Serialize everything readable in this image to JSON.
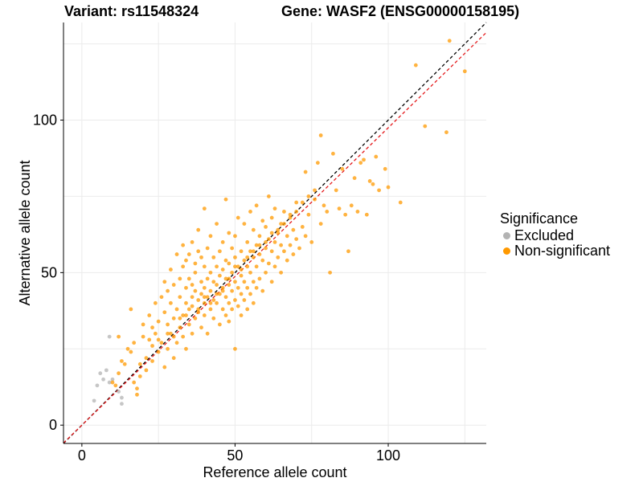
{
  "header": {
    "variant_title": "Variant: rs11548324",
    "gene_title": "Gene: WASF2 (ENSG00000158195)"
  },
  "legend": {
    "title": "Significance",
    "items": [
      {
        "label": "Excluded",
        "color": "#b3b3b3"
      },
      {
        "label": "Non-significant",
        "color": "#ff9900"
      }
    ]
  },
  "chart_data": {
    "type": "scatter",
    "xlabel": "Reference allele count",
    "ylabel": "Alternative allele count",
    "xlim": [
      -6,
      132
    ],
    "ylim": [
      -6,
      132
    ],
    "x_ticks": [
      0,
      50,
      100
    ],
    "y_ticks": [
      0,
      50,
      100
    ],
    "grid": true,
    "legend_position": "right",
    "reference_lines": [
      {
        "name": "identity",
        "color": "#000000",
        "style": "dashed",
        "slope": 1.0,
        "intercept": 0
      },
      {
        "name": "fit",
        "color": "#e41a1c",
        "style": "dashed",
        "slope": 0.975,
        "intercept": 0
      }
    ],
    "series": [
      {
        "name": "Excluded",
        "color": "#b3b3b3",
        "points": [
          [
            4,
            8
          ],
          [
            5,
            13
          ],
          [
            6,
            17
          ],
          [
            7,
            15
          ],
          [
            8,
            18
          ],
          [
            9,
            14
          ],
          [
            9,
            29
          ],
          [
            10,
            15
          ],
          [
            13,
            9
          ],
          [
            13,
            7
          ],
          [
            12,
            11
          ]
        ]
      },
      {
        "name": "Non-significant",
        "color": "#ff9900",
        "points": [
          [
            10,
            14
          ],
          [
            11,
            13
          ],
          [
            12,
            17
          ],
          [
            13,
            21
          ],
          [
            14,
            20
          ],
          [
            15,
            25
          ],
          [
            12,
            29
          ],
          [
            16,
            24
          ],
          [
            17,
            27
          ],
          [
            16,
            38
          ],
          [
            18,
            10
          ],
          [
            18,
            12
          ],
          [
            19,
            20
          ],
          [
            20,
            29
          ],
          [
            20,
            33
          ],
          [
            21,
            22
          ],
          [
            22,
            36
          ],
          [
            22,
            28
          ],
          [
            23,
            21
          ],
          [
            23,
            32
          ],
          [
            24,
            30
          ],
          [
            24,
            40
          ],
          [
            25,
            24
          ],
          [
            25,
            34
          ],
          [
            26,
            27
          ],
          [
            26,
            42
          ],
          [
            27,
            19
          ],
          [
            27,
            37
          ],
          [
            27,
            47
          ],
          [
            28,
            25
          ],
          [
            28,
            33
          ],
          [
            28,
            44
          ],
          [
            29,
            30
          ],
          [
            29,
            40
          ],
          [
            29,
            51
          ],
          [
            30,
            22
          ],
          [
            30,
            35
          ],
          [
            30,
            46
          ],
          [
            31,
            27
          ],
          [
            31,
            38
          ],
          [
            31,
            56
          ],
          [
            32,
            32
          ],
          [
            32,
            42
          ],
          [
            32,
            48
          ],
          [
            33,
            29
          ],
          [
            33,
            36
          ],
          [
            33,
            52
          ],
          [
            33,
            59
          ],
          [
            34,
            25
          ],
          [
            34,
            40
          ],
          [
            34,
            45
          ],
          [
            34,
            54
          ],
          [
            35,
            33
          ],
          [
            35,
            38
          ],
          [
            35,
            48
          ],
          [
            35,
            56
          ],
          [
            36,
            30
          ],
          [
            36,
            42
          ],
          [
            36,
            46
          ],
          [
            36,
            60
          ],
          [
            37,
            35
          ],
          [
            37,
            44
          ],
          [
            37,
            50
          ],
          [
            37,
            53
          ],
          [
            38,
            38
          ],
          [
            38,
            41
          ],
          [
            38,
            57
          ],
          [
            38,
            64
          ],
          [
            39,
            32
          ],
          [
            39,
            43
          ],
          [
            39,
            47
          ],
          [
            39,
            55
          ],
          [
            40,
            36
          ],
          [
            40,
            40
          ],
          [
            40,
            45
          ],
          [
            40,
            52
          ],
          [
            40,
            71
          ],
          [
            41,
            30
          ],
          [
            41,
            42
          ],
          [
            41,
            48
          ],
          [
            41,
            58
          ],
          [
            42,
            38
          ],
          [
            42,
            44
          ],
          [
            42,
            50
          ],
          [
            42,
            62
          ],
          [
            43,
            35
          ],
          [
            43,
            41
          ],
          [
            43,
            47
          ],
          [
            43,
            55
          ],
          [
            44,
            40
          ],
          [
            44,
            46
          ],
          [
            44,
            52
          ],
          [
            44,
            66
          ],
          [
            45,
            33
          ],
          [
            45,
            43
          ],
          [
            45,
            49
          ],
          [
            45,
            57
          ],
          [
            46,
            38
          ],
          [
            46,
            44
          ],
          [
            46,
            51
          ],
          [
            46,
            60
          ],
          [
            47,
            36
          ],
          [
            47,
            42
          ],
          [
            47,
            48
          ],
          [
            47,
            54
          ],
          [
            47,
            74
          ],
          [
            48,
            34
          ],
          [
            48,
            40
          ],
          [
            48,
            46
          ],
          [
            48,
            53
          ],
          [
            48,
            63
          ],
          [
            49,
            38
          ],
          [
            49,
            44
          ],
          [
            49,
            50
          ],
          [
            49,
            58
          ],
          [
            50,
            25
          ],
          [
            50,
            41
          ],
          [
            50,
            47
          ],
          [
            50,
            55
          ],
          [
            50,
            62
          ],
          [
            51,
            39
          ],
          [
            51,
            45
          ],
          [
            51,
            52
          ],
          [
            51,
            68
          ],
          [
            52,
            36
          ],
          [
            52,
            43
          ],
          [
            52,
            49
          ],
          [
            52,
            57
          ],
          [
            53,
            41
          ],
          [
            53,
            47
          ],
          [
            53,
            54
          ],
          [
            53,
            66
          ],
          [
            54,
            38
          ],
          [
            54,
            45
          ],
          [
            54,
            52
          ],
          [
            54,
            60
          ],
          [
            55,
            43
          ],
          [
            55,
            50
          ],
          [
            55,
            57
          ],
          [
            55,
            70
          ],
          [
            56,
            40
          ],
          [
            56,
            47
          ],
          [
            56,
            55
          ],
          [
            56,
            64
          ],
          [
            57,
            45
          ],
          [
            57,
            52
          ],
          [
            57,
            59
          ],
          [
            57,
            72
          ],
          [
            58,
            48
          ],
          [
            58,
            56
          ],
          [
            58,
            62
          ],
          [
            59,
            44
          ],
          [
            59,
            54
          ],
          [
            59,
            67
          ],
          [
            60,
            50
          ],
          [
            60,
            58
          ],
          [
            60,
            65
          ],
          [
            61,
            53
          ],
          [
            61,
            61
          ],
          [
            61,
            75
          ],
          [
            62,
            47
          ],
          [
            62,
            57
          ],
          [
            62,
            68
          ],
          [
            63,
            52
          ],
          [
            63,
            60
          ],
          [
            63,
            71
          ],
          [
            64,
            55
          ],
          [
            64,
            63
          ],
          [
            65,
            50
          ],
          [
            65,
            59
          ],
          [
            65,
            66
          ],
          [
            66,
            57
          ],
          [
            66,
            70
          ],
          [
            67,
            54
          ],
          [
            67,
            62
          ],
          [
            68,
            59
          ],
          [
            68,
            68
          ],
          [
            69,
            56
          ],
          [
            69,
            64
          ],
          [
            70,
            61
          ],
          [
            70,
            73
          ],
          [
            71,
            58
          ],
          [
            72,
            65
          ],
          [
            73,
            62
          ],
          [
            73,
            83
          ],
          [
            74,
            69
          ],
          [
            75,
            60
          ],
          [
            76,
            74
          ],
          [
            77,
            86
          ],
          [
            78,
            66
          ],
          [
            78,
            95
          ],
          [
            79,
            72
          ],
          [
            80,
            70
          ],
          [
            81,
            50
          ],
          [
            82,
            89
          ],
          [
            83,
            77
          ],
          [
            84,
            71
          ],
          [
            85,
            84
          ],
          [
            86,
            69
          ],
          [
            87,
            57
          ],
          [
            88,
            72
          ],
          [
            89,
            81
          ],
          [
            90,
            70
          ],
          [
            91,
            86
          ],
          [
            92,
            87
          ],
          [
            93,
            69
          ],
          [
            94,
            80
          ],
          [
            95,
            79
          ],
          [
            96,
            88
          ],
          [
            97,
            77
          ],
          [
            99,
            84
          ],
          [
            100,
            78
          ],
          [
            104,
            73
          ],
          [
            109,
            118
          ],
          [
            112,
            98
          ],
          [
            119,
            96
          ],
          [
            120,
            126
          ],
          [
            125,
            116
          ],
          [
            17,
            14
          ],
          [
            19,
            16
          ],
          [
            21,
            18
          ],
          [
            23,
            26
          ],
          [
            25,
            28
          ],
          [
            28,
            30
          ],
          [
            30,
            29
          ],
          [
            32,
            35
          ],
          [
            34,
            36
          ],
          [
            36,
            39
          ],
          [
            38,
            37
          ],
          [
            40,
            42
          ],
          [
            42,
            40
          ],
          [
            44,
            43
          ],
          [
            46,
            45
          ],
          [
            48,
            48
          ],
          [
            50,
            52
          ],
          [
            52,
            51
          ],
          [
            54,
            55
          ],
          [
            56,
            57
          ],
          [
            58,
            59
          ],
          [
            60,
            60
          ],
          [
            62,
            63
          ],
          [
            64,
            64
          ],
          [
            66,
            66
          ],
          [
            68,
            69
          ],
          [
            70,
            70
          ],
          [
            72,
            73
          ],
          [
            74,
            75
          ],
          [
            76,
            77
          ]
        ]
      }
    ]
  }
}
